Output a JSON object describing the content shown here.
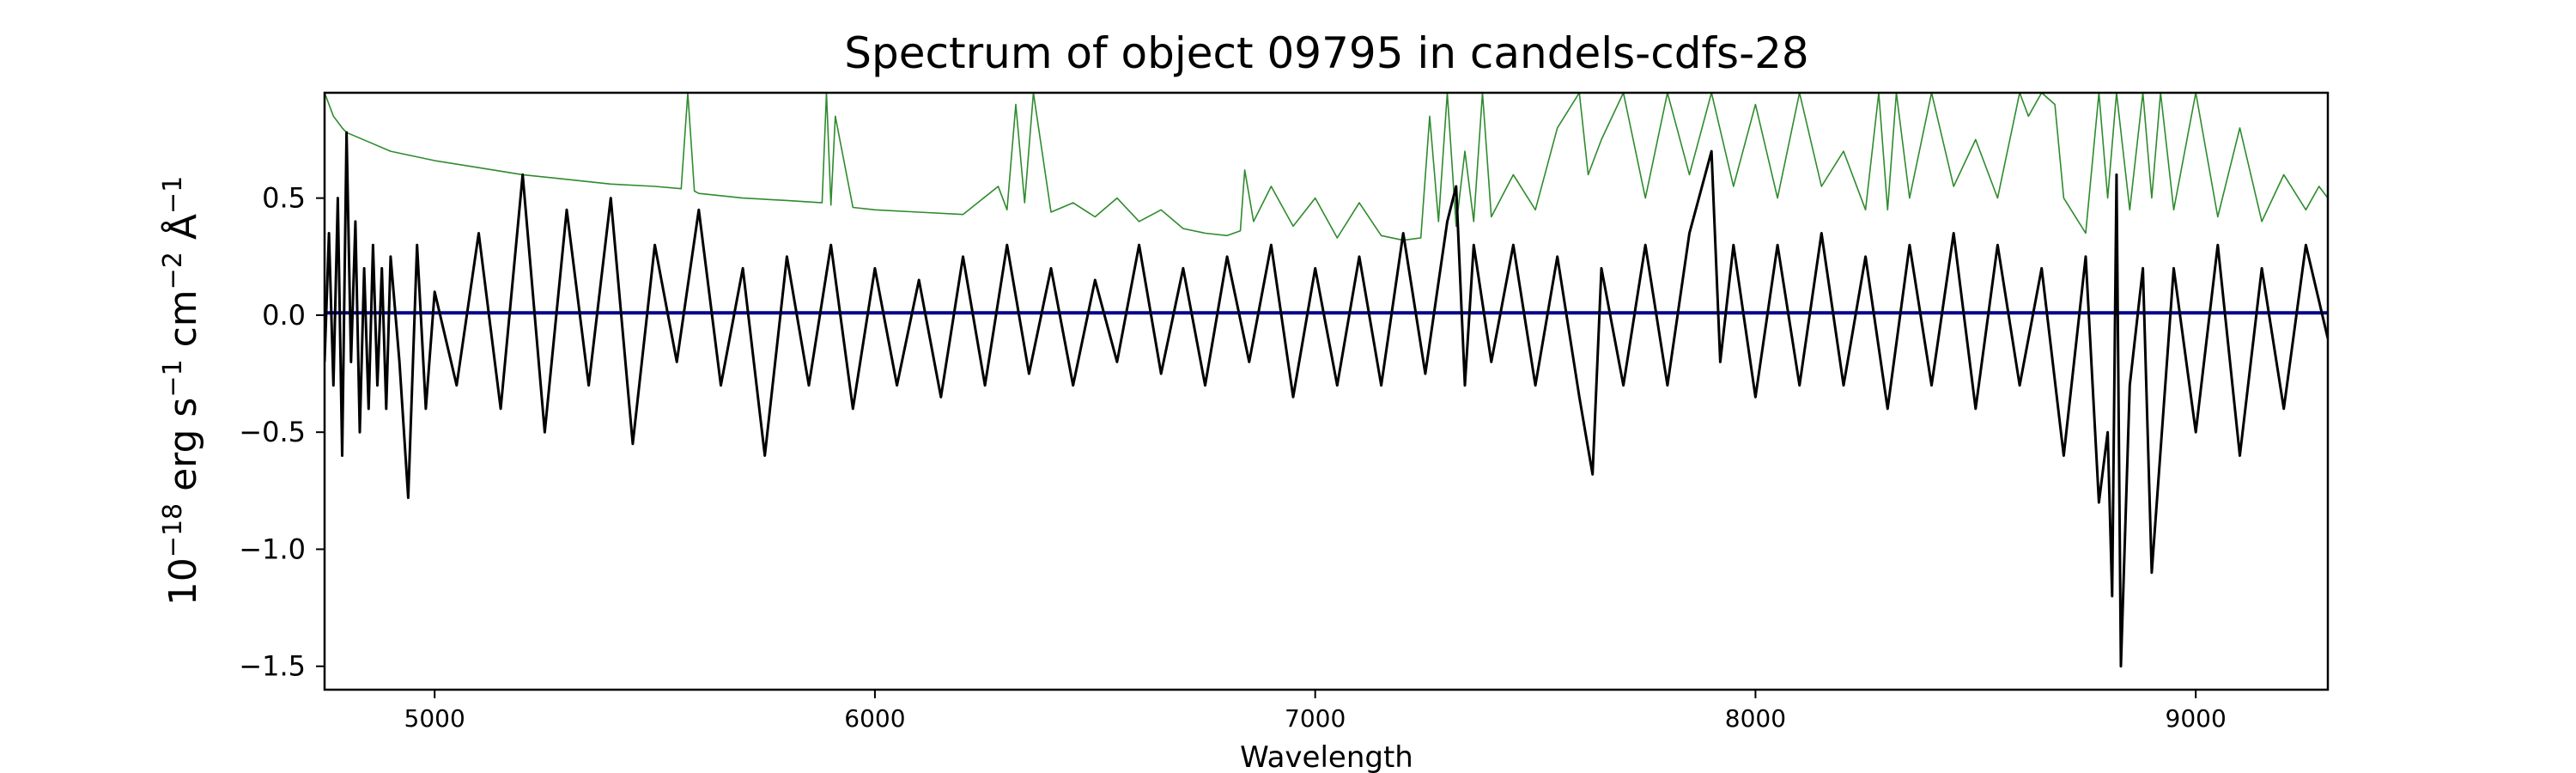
{
  "chart_data": {
    "type": "line",
    "title": "Spectrum of object 09795 in candels-cdfs-28",
    "xlabel": "Wavelength",
    "ylabel_base": "10",
    "ylabel_exp": "−18",
    "ylabel_units": [
      {
        "text": " erg s",
        "sup": "−1"
      },
      {
        "text": " cm",
        "sup": "−2"
      },
      {
        "text": " Å",
        "sup": "−1"
      }
    ],
    "xlim": [
      4750,
      9300
    ],
    "ylim": [
      -1.6,
      0.95
    ],
    "xticks": [
      5000,
      6000,
      7000,
      8000,
      9000
    ],
    "xtick_labels": [
      "5000",
      "6000",
      "7000",
      "8000",
      "9000"
    ],
    "yticks": [
      -1.5,
      -1.0,
      -0.5,
      0.0,
      0.5
    ],
    "ytick_labels": [
      "−1.5",
      "−1.0",
      "−0.5",
      "0.0",
      "0.5"
    ],
    "grid": false,
    "series": [
      {
        "role": "noise",
        "color": "#2e8b2e",
        "x": [
          4750,
          4770,
          4790,
          4800,
          4850,
          4900,
          5000,
          5100,
          5200,
          5300,
          5400,
          5500,
          5560,
          5575,
          5590,
          5600,
          5700,
          5800,
          5880,
          5890,
          5900,
          5910,
          5950,
          6000,
          6100,
          6200,
          6280,
          6300,
          6320,
          6340,
          6360,
          6400,
          6450,
          6500,
          6550,
          6600,
          6650,
          6700,
          6750,
          6800,
          6830,
          6840,
          6860,
          6900,
          6950,
          7000,
          7050,
          7100,
          7150,
          7200,
          7240,
          7260,
          7280,
          7300,
          7320,
          7340,
          7360,
          7380,
          7400,
          7450,
          7500,
          7550,
          7600,
          7620,
          7650,
          7700,
          7750,
          7800,
          7850,
          7900,
          7950,
          8000,
          8050,
          8100,
          8150,
          8200,
          8250,
          8280,
          8300,
          8320,
          8350,
          8400,
          8450,
          8500,
          8550,
          8600,
          8620,
          8650,
          8680,
          8700,
          8750,
          8780,
          8800,
          8820,
          8850,
          8880,
          8900,
          8920,
          8950,
          9000,
          9050,
          9100,
          9150,
          9200,
          9250,
          9280,
          9300
        ],
        "y": [
          0.95,
          0.85,
          0.8,
          0.78,
          0.74,
          0.7,
          0.66,
          0.63,
          0.6,
          0.58,
          0.56,
          0.55,
          0.54,
          0.95,
          0.53,
          0.52,
          0.5,
          0.49,
          0.48,
          0.95,
          0.47,
          0.85,
          0.46,
          0.45,
          0.44,
          0.43,
          0.55,
          0.45,
          0.9,
          0.48,
          0.95,
          0.44,
          0.48,
          0.42,
          0.5,
          0.4,
          0.45,
          0.37,
          0.35,
          0.34,
          0.36,
          0.62,
          0.4,
          0.55,
          0.38,
          0.5,
          0.33,
          0.48,
          0.34,
          0.32,
          0.33,
          0.85,
          0.4,
          0.95,
          0.38,
          0.7,
          0.4,
          0.95,
          0.42,
          0.6,
          0.45,
          0.8,
          0.95,
          0.6,
          0.75,
          0.95,
          0.5,
          0.95,
          0.6,
          0.95,
          0.55,
          0.9,
          0.5,
          0.95,
          0.55,
          0.7,
          0.45,
          0.95,
          0.45,
          0.95,
          0.5,
          0.95,
          0.55,
          0.75,
          0.5,
          0.95,
          0.85,
          0.95,
          0.9,
          0.5,
          0.35,
          0.95,
          0.5,
          0.95,
          0.45,
          0.95,
          0.5,
          0.95,
          0.45,
          0.95,
          0.42,
          0.8,
          0.4,
          0.6,
          0.45,
          0.55,
          0.5
        ]
      },
      {
        "role": "model",
        "color": "#00008b",
        "x": [
          4750,
          9300
        ],
        "y": [
          0.01,
          0.01
        ]
      },
      {
        "role": "flux",
        "color": "#000000",
        "x": [
          4750,
          4760,
          4770,
          4780,
          4790,
          4800,
          4810,
          4820,
          4830,
          4840,
          4850,
          4860,
          4870,
          4880,
          4890,
          4900,
          4920,
          4940,
          4960,
          4980,
          5000,
          5050,
          5100,
          5150,
          5200,
          5250,
          5300,
          5350,
          5400,
          5450,
          5500,
          5550,
          5600,
          5650,
          5700,
          5750,
          5800,
          5850,
          5900,
          5950,
          6000,
          6050,
          6100,
          6150,
          6200,
          6250,
          6300,
          6350,
          6400,
          6450,
          6500,
          6550,
          6600,
          6650,
          6700,
          6750,
          6800,
          6850,
          6900,
          6950,
          7000,
          7050,
          7100,
          7150,
          7200,
          7250,
          7300,
          7320,
          7340,
          7360,
          7400,
          7450,
          7500,
          7550,
          7600,
          7630,
          7650,
          7700,
          7750,
          7800,
          7850,
          7900,
          7920,
          7950,
          8000,
          8050,
          8100,
          8150,
          8200,
          8250,
          8300,
          8350,
          8400,
          8450,
          8500,
          8550,
          8600,
          8650,
          8700,
          8750,
          8780,
          8800,
          8810,
          8820,
          8830,
          8850,
          8880,
          8900,
          8950,
          9000,
          9050,
          9100,
          9150,
          9200,
          9250,
          9300
        ],
        "y": [
          -0.2,
          0.35,
          -0.3,
          0.5,
          -0.6,
          0.78,
          -0.2,
          0.4,
          -0.5,
          0.2,
          -0.4,
          0.3,
          -0.3,
          0.2,
          -0.4,
          0.25,
          -0.2,
          -0.78,
          0.3,
          -0.4,
          0.1,
          -0.3,
          0.35,
          -0.4,
          0.6,
          -0.5,
          0.45,
          -0.3,
          0.5,
          -0.55,
          0.3,
          -0.2,
          0.45,
          -0.3,
          0.2,
          -0.6,
          0.25,
          -0.3,
          0.3,
          -0.4,
          0.2,
          -0.3,
          0.15,
          -0.35,
          0.25,
          -0.3,
          0.3,
          -0.25,
          0.2,
          -0.3,
          0.15,
          -0.2,
          0.3,
          -0.25,
          0.2,
          -0.3,
          0.25,
          -0.2,
          0.3,
          -0.35,
          0.2,
          -0.3,
          0.25,
          -0.3,
          0.35,
          -0.25,
          0.4,
          0.55,
          -0.3,
          0.3,
          -0.2,
          0.3,
          -0.3,
          0.25,
          -0.35,
          -0.68,
          0.2,
          -0.3,
          0.3,
          -0.3,
          0.35,
          0.7,
          -0.2,
          0.3,
          -0.35,
          0.3,
          -0.3,
          0.35,
          -0.3,
          0.25,
          -0.4,
          0.3,
          -0.3,
          0.35,
          -0.4,
          0.3,
          -0.3,
          0.2,
          -0.6,
          0.25,
          -0.8,
          -0.5,
          -1.2,
          0.6,
          -1.5,
          -0.3,
          0.2,
          -1.1,
          0.2,
          -0.5,
          0.3,
          -0.6,
          0.2,
          -0.4,
          0.3,
          -0.1
        ]
      }
    ]
  }
}
